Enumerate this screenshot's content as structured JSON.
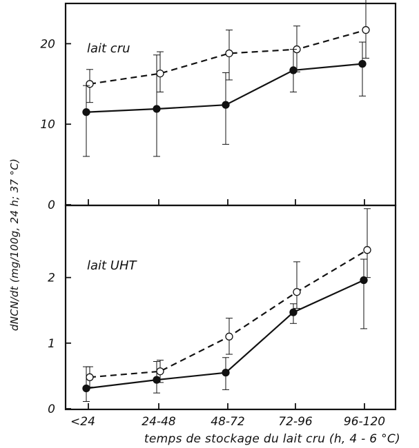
{
  "chart_data": [
    {
      "type": "line",
      "title": "lait cru",
      "categories": [
        "<24",
        "24-48",
        "48-72",
        "72-96",
        "96-120"
      ],
      "yticks": [
        "0",
        "10",
        "20"
      ],
      "ylim": [
        0,
        25
      ],
      "grid": false,
      "series": [
        {
          "marker": "open-circle",
          "style": "dashed",
          "values": [
            15.0,
            16.3,
            18.8,
            19.3,
            21.7
          ],
          "err_low": [
            2.3,
            2.3,
            3.3,
            2.8,
            3.5
          ],
          "err_high": [
            1.8,
            2.7,
            2.9,
            2.9,
            4.3
          ]
        },
        {
          "marker": "filled-circle",
          "style": "solid",
          "values": [
            11.5,
            11.9,
            12.4,
            16.7,
            17.5
          ],
          "err_low": [
            5.5,
            5.9,
            4.9,
            2.7,
            4.0
          ],
          "err_high": [
            3.3,
            6.7,
            4.0,
            2.6,
            2.7
          ]
        }
      ]
    },
    {
      "type": "line",
      "title": "lait UHT",
      "categories": [
        "<24",
        "24-48",
        "48-72",
        "72-96",
        "96-120"
      ],
      "yticks": [
        "0",
        "1",
        "2"
      ],
      "ylim": [
        0,
        3.1
      ],
      "grid": false,
      "series": [
        {
          "marker": "open-circle",
          "style": "dashed",
          "values": [
            0.48,
            0.57,
            1.1,
            1.78,
            2.42
          ],
          "err_low": [
            0.15,
            0.17,
            0.27,
            0.25,
            0.42
          ],
          "err_high": [
            0.16,
            0.17,
            0.28,
            0.46,
            0.63
          ]
        },
        {
          "marker": "filled-circle",
          "style": "solid",
          "values": [
            0.31,
            0.44,
            0.55,
            1.47,
            1.96
          ],
          "err_low": [
            0.2,
            0.2,
            0.26,
            0.17,
            0.74
          ],
          "err_high": [
            0.33,
            0.28,
            0.23,
            0.13,
            0.32
          ]
        }
      ]
    }
  ],
  "axes": {
    "xlabel": "temps de stockage du lait cru (h, 4 - 6 °C)",
    "ylabel": "dNCN/dt (mg/100g, 24 h; 37 °C)"
  },
  "colors": {
    "ink": "#111111",
    "background": "#ffffff"
  }
}
